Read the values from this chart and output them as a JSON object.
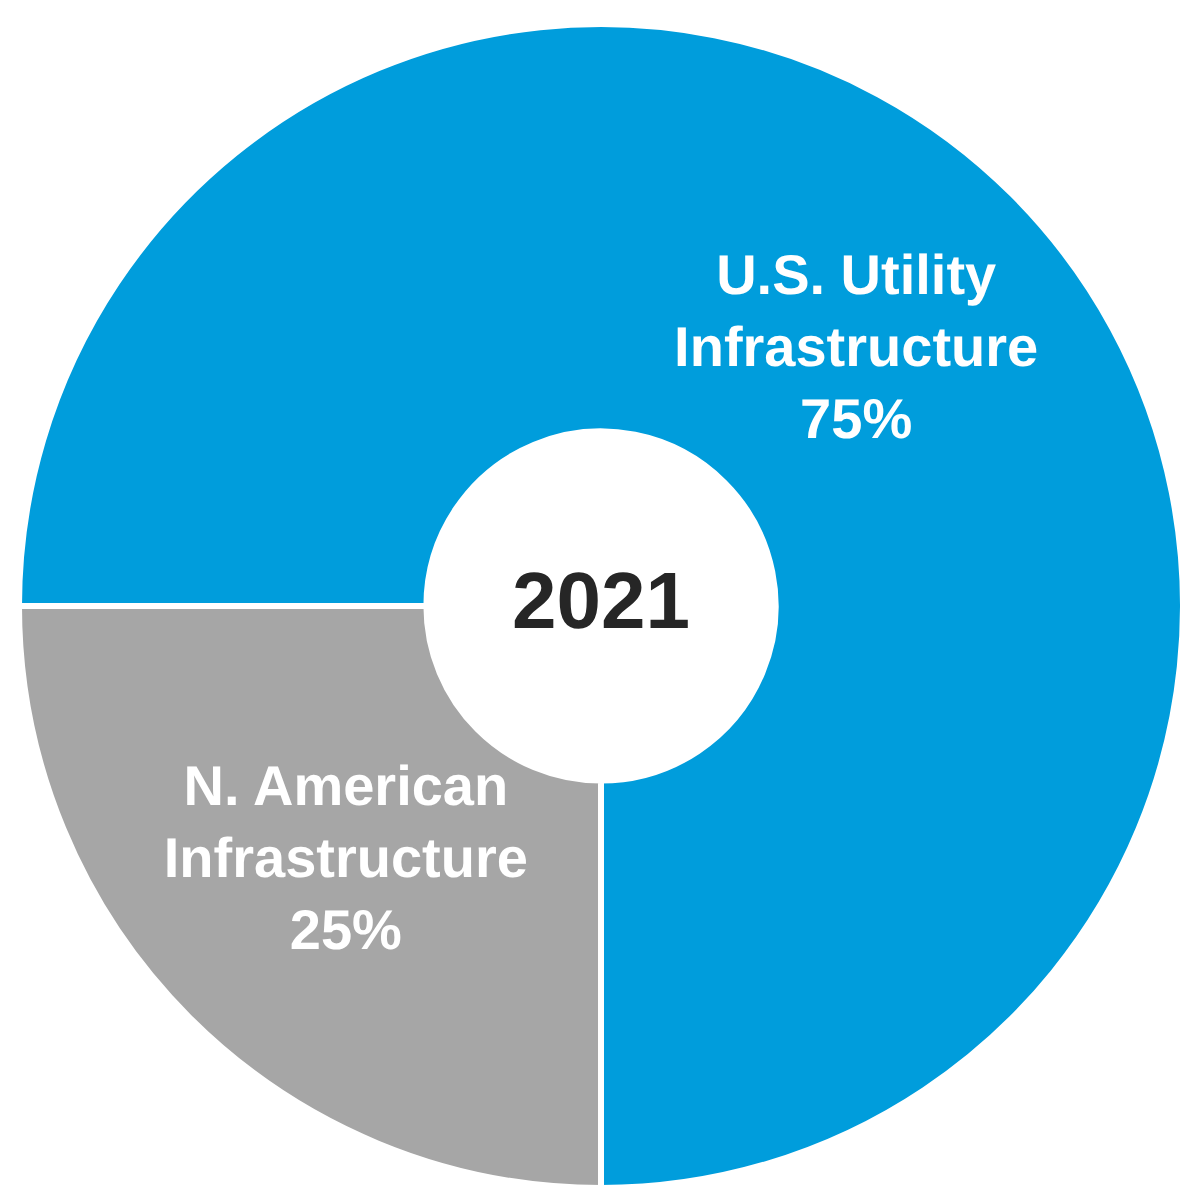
{
  "chart_data": {
    "type": "donut",
    "title": "2021",
    "categories": [
      "U.S. Utility Infrastructure",
      "N. American Infrastructure"
    ],
    "values": [
      75,
      25
    ],
    "colors": [
      "#009ddc",
      "#a6a6a6"
    ],
    "value_labels": [
      "75%",
      "25%"
    ],
    "legend": false
  }
}
